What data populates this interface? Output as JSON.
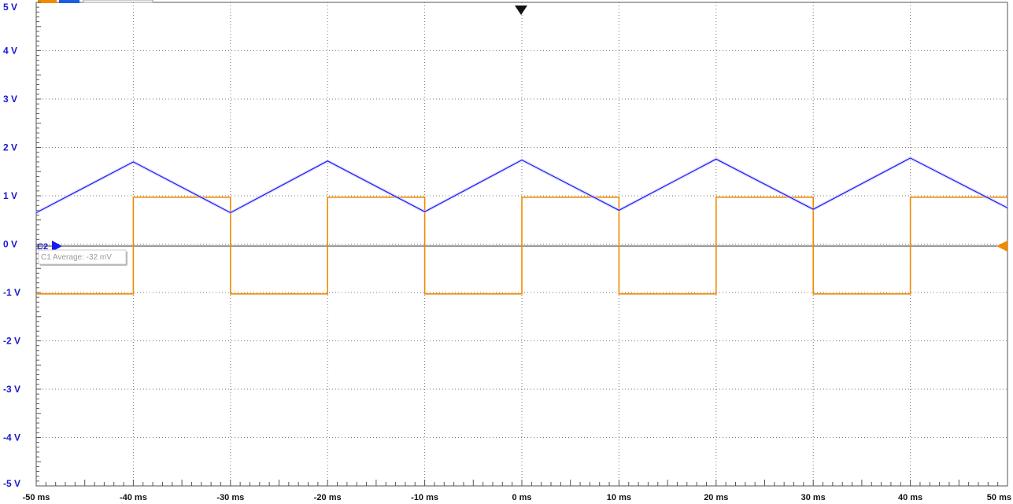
{
  "chart_data": {
    "type": "line",
    "xlabel": "",
    "ylabel": "",
    "xlim": [
      -50,
      50
    ],
    "ylim": [
      -5,
      5
    ],
    "grid": true,
    "x_tick_labels": [
      "-50 ms",
      "-40 ms",
      "-30 ms",
      "-20 ms",
      "-10 ms",
      "0 ms",
      "10 ms",
      "20 ms",
      "30 ms",
      "40 ms",
      "50 ms"
    ],
    "y_tick_labels": [
      "5 V",
      "4 V",
      "3 V",
      "2 V",
      "1 V",
      "0 V",
      "-1 V",
      "-2 V",
      "-3 V",
      "-4 V",
      "-5 V"
    ],
    "series": [
      {
        "color": "#f28a00",
        "x": [
          -50,
          -40,
          -40,
          -30,
          -30,
          -20,
          -20,
          -10,
          -10,
          0,
          0,
          10,
          10,
          20,
          20,
          30,
          30,
          40,
          40,
          50
        ],
        "y": [
          -1.03,
          -1.03,
          0.97,
          0.97,
          -1.03,
          -1.03,
          0.97,
          0.97,
          -1.03,
          -1.03,
          0.97,
          0.97,
          -1.03,
          -1.03,
          0.97,
          0.97,
          -1.03,
          -1.03,
          0.97,
          0.97
        ]
      },
      {
        "color": "#1a1aee",
        "x": [
          -50,
          -40,
          -30,
          -20,
          -10,
          0,
          10,
          20,
          30,
          40,
          50
        ],
        "y": [
          0.65,
          1.7,
          0.65,
          1.72,
          0.67,
          1.74,
          0.7,
          1.76,
          0.72,
          1.78,
          0.75
        ]
      }
    ],
    "channel_marker_label": "C2",
    "measurement_label": "C1 Average: -32 mV"
  }
}
